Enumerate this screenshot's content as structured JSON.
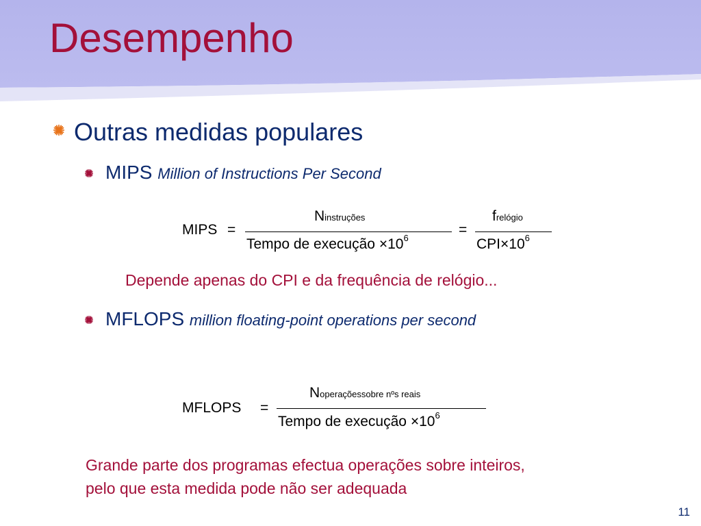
{
  "slide": {
    "title": "Desempenho",
    "page_number": "11"
  },
  "colors": {
    "header_band_top": "#b6b6ec",
    "header_band_light": "#e6e6f8",
    "title": "#a3103a",
    "body_text": "#0d2a6e",
    "note_text": "#a3103a",
    "bullet_marker": "#e8731a"
  },
  "bullets": {
    "level1": {
      "text": "Outras medidas populares",
      "marker_icon": "starburst-bullet-icon"
    },
    "mips": {
      "term": "MIPS",
      "description": "Million of Instructions Per Second",
      "marker_icon": "starburst-bullet-icon"
    },
    "mflops": {
      "term": "MFLOPS",
      "description": "million floating-point operations per second",
      "marker_icon": "starburst-bullet-icon"
    }
  },
  "formula_mips": {
    "lhs": "MIPS",
    "eq": "=",
    "num1_base": "N",
    "num1_sub": "instruções",
    "den1_text": "Tempo de execução",
    "times": "×",
    "den1_power_base": "10",
    "den1_power_exp": "6",
    "eq2": "=",
    "num2_base": "f",
    "num2_sub": "relógio",
    "den2_text": "CPI",
    "den2_power_base": "10",
    "den2_power_exp": "6"
  },
  "note_mips": "Depende apenas do CPI e da frequência de relógio...",
  "formula_mflops": {
    "lhs": "MFLOPS",
    "eq": "=",
    "num_base": "N",
    "num_sub": "operaçõessobre nºs reais",
    "den_text": "Tempo de execução",
    "times": "×",
    "den_power_base": "10",
    "den_power_exp": "6"
  },
  "note_mflops": {
    "line1": "Grande parte dos programas efectua operações sobre inteiros,",
    "line2": "pelo que esta medida pode não ser adequada"
  }
}
